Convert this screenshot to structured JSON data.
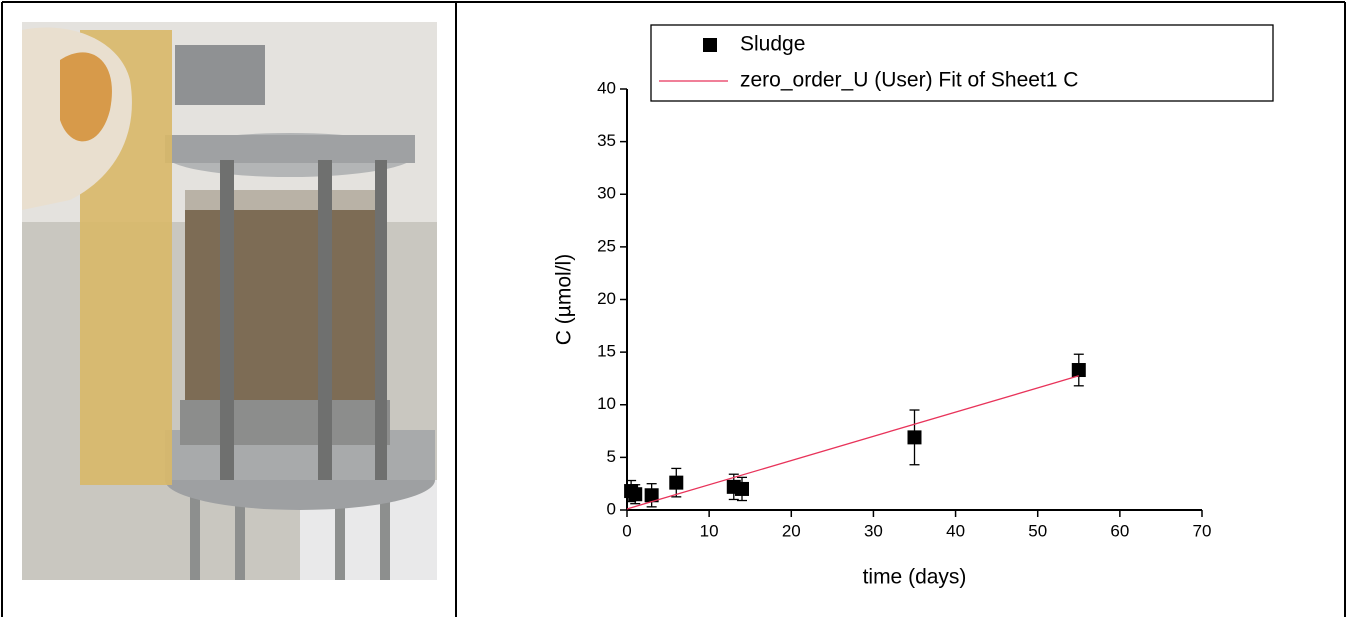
{
  "chart_data": {
    "type": "scatter",
    "x_label": "time (days)",
    "y_label": "C (µmol/l)",
    "xlim": [
      0,
      70
    ],
    "ylim": [
      0,
      40
    ],
    "xticks": [
      0,
      10,
      20,
      30,
      40,
      50,
      60,
      70
    ],
    "yticks": [
      0,
      5,
      10,
      15,
      20,
      25,
      30,
      35,
      40
    ],
    "legend": "top",
    "series": [
      {
        "name": "Sludge",
        "color": "#000000",
        "marker": "square",
        "x": [
          0.5,
          1,
          3,
          6,
          13,
          14,
          35,
          55
        ],
        "values": [
          1.8,
          1.5,
          1.4,
          2.6,
          2.2,
          2.0,
          6.9,
          13.3
        ],
        "errors": [
          1.0,
          0.9,
          1.1,
          1.35,
          1.2,
          1.1,
          2.6,
          1.5
        ]
      },
      {
        "name": "zero_order_U (User) Fit of Sheet1 C",
        "color": "#e8335a",
        "type": "line",
        "x": [
          0,
          55
        ],
        "values": [
          0.1,
          12.75
        ]
      }
    ]
  }
}
